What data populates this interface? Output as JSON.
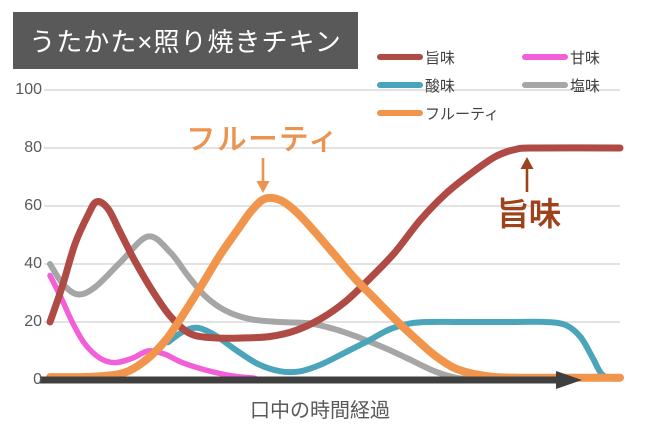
{
  "header": {
    "title": "うたかた×照り焼きチキン"
  },
  "colors": {
    "title_bg": "#595959",
    "title_text": "#FFFFFF",
    "grid": "#D9D9D9",
    "axis": "#3F3F3F",
    "tick_label": "#595959",
    "legend_label": "#404040"
  },
  "legend": {
    "items": [
      {
        "label": "旨味",
        "color": "#B04A45"
      },
      {
        "label": "甘味",
        "color": "#F25FD8"
      },
      {
        "label": "酸味",
        "color": "#4AA5BA"
      },
      {
        "label": "塩味",
        "color": "#A6A6A6"
      },
      {
        "label": "フルーティ",
        "color": "#F0954B"
      }
    ]
  },
  "annotations": {
    "fruity": {
      "text": "フルーティ",
      "color": "#EC9350"
    },
    "umami": {
      "text": "旨味",
      "color": "#9C431B"
    }
  },
  "x_axis": {
    "label": "口中の時間経過"
  },
  "chart_data": {
    "type": "line",
    "title": "うたかた×照り焼きチキン",
    "xlabel": "口中の時間経過",
    "ylabel": "",
    "xlim": [
      0,
      100
    ],
    "ylim": [
      0,
      100
    ],
    "y_ticks": [
      0,
      20,
      40,
      60,
      80,
      100
    ],
    "x_ticks": [],
    "grid": "horizontal-only",
    "legend_position": "top-right",
    "draw_order": [
      3,
      1,
      2,
      0,
      4
    ],
    "series": [
      {
        "name": "旨味",
        "color": "#B04A45",
        "width": 7,
        "points": [
          [
            0,
            20
          ],
          [
            2.1,
            32
          ],
          [
            4.4,
            47
          ],
          [
            6.7,
            57
          ],
          [
            8.2,
            61.5
          ],
          [
            10.2,
            59
          ],
          [
            12.3,
            51
          ],
          [
            14.9,
            41
          ],
          [
            17.9,
            31
          ],
          [
            21.1,
            22
          ],
          [
            24.6,
            16
          ],
          [
            28.9,
            14.5
          ],
          [
            34.2,
            14.5
          ],
          [
            38.6,
            15
          ],
          [
            43,
            17
          ],
          [
            47.4,
            21
          ],
          [
            51.8,
            27
          ],
          [
            56.1,
            35
          ],
          [
            60.5,
            44
          ],
          [
            64.9,
            55
          ],
          [
            69.3,
            64
          ],
          [
            73.7,
            71
          ],
          [
            78.1,
            77
          ],
          [
            81.6,
            79.5
          ],
          [
            85.1,
            80
          ],
          [
            100,
            80
          ]
        ]
      },
      {
        "name": "甘味",
        "color": "#F25FD8",
        "width": 5.5,
        "points": [
          [
            0,
            36
          ],
          [
            1.8,
            29
          ],
          [
            3.9,
            20
          ],
          [
            6.1,
            12.5
          ],
          [
            8.8,
            7.5
          ],
          [
            11.4,
            6
          ],
          [
            14.4,
            7.5
          ],
          [
            17.2,
            10
          ],
          [
            20,
            9
          ],
          [
            23.2,
            6
          ],
          [
            27.2,
            3.5
          ],
          [
            31.6,
            1.5
          ],
          [
            36,
            0.6
          ]
        ]
      },
      {
        "name": "酸味",
        "color": "#4AA5BA",
        "width": 6,
        "points": [
          [
            20.7,
            13
          ],
          [
            23.2,
            16.5
          ],
          [
            25.8,
            18
          ],
          [
            28.9,
            15.5
          ],
          [
            32.5,
            10.5
          ],
          [
            36.5,
            5.5
          ],
          [
            40.4,
            3
          ],
          [
            43.9,
            3
          ],
          [
            47.7,
            5.5
          ],
          [
            51.8,
            9.5
          ],
          [
            55.8,
            13.5
          ],
          [
            59.6,
            17.5
          ],
          [
            63.2,
            19.5
          ],
          [
            66.7,
            20
          ],
          [
            73.7,
            20
          ],
          [
            80.7,
            20
          ],
          [
            86.8,
            20
          ],
          [
            90.4,
            19
          ],
          [
            93,
            15
          ],
          [
            95.1,
            8
          ],
          [
            96.8,
            2
          ],
          [
            98.6,
            0.6
          ],
          [
            100,
            0.5
          ]
        ]
      },
      {
        "name": "塩味",
        "color": "#A6A6A6",
        "width": 6,
        "points": [
          [
            0,
            40
          ],
          [
            2.3,
            33
          ],
          [
            4.9,
            29.5
          ],
          [
            7.9,
            32
          ],
          [
            12.3,
            40.5
          ],
          [
            17.2,
            49.5
          ],
          [
            21.1,
            44
          ],
          [
            24.2,
            36
          ],
          [
            27.2,
            29
          ],
          [
            30.7,
            24
          ],
          [
            35.1,
            21
          ],
          [
            40.4,
            20
          ],
          [
            45.6,
            19.5
          ],
          [
            50,
            17.5
          ],
          [
            54.4,
            14.5
          ],
          [
            58.8,
            11
          ],
          [
            63.2,
            7
          ],
          [
            67.5,
            3
          ],
          [
            71.1,
            0.8
          ],
          [
            72.8,
            0.5
          ]
        ]
      },
      {
        "name": "フルーティ",
        "color": "#F0954B",
        "width": 8,
        "points": [
          [
            0,
            1
          ],
          [
            5.3,
            1
          ],
          [
            10.2,
            1.5
          ],
          [
            13.7,
            3
          ],
          [
            17.2,
            7.5
          ],
          [
            20.4,
            14
          ],
          [
            23.5,
            23
          ],
          [
            26.7,
            33
          ],
          [
            29.8,
            43
          ],
          [
            33,
            52
          ],
          [
            35.4,
            58.5
          ],
          [
            37.7,
            62.5
          ],
          [
            40.4,
            62
          ],
          [
            43.2,
            58
          ],
          [
            46.5,
            51
          ],
          [
            50,
            43
          ],
          [
            53.5,
            35
          ],
          [
            57,
            28
          ],
          [
            60.5,
            21
          ],
          [
            64,
            14.5
          ],
          [
            67.5,
            8.5
          ],
          [
            71.1,
            4
          ],
          [
            74.6,
            2
          ],
          [
            78.1,
            1
          ],
          [
            82.5,
            0.8
          ],
          [
            89.5,
            0.8
          ],
          [
            100,
            0.8
          ]
        ]
      }
    ]
  }
}
